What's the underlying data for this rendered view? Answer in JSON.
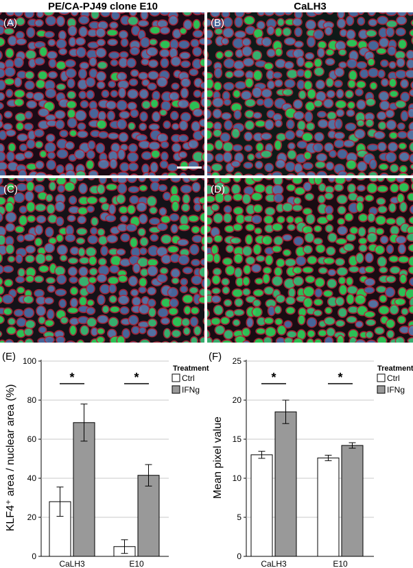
{
  "headers": {
    "left": "PE/CA-PJ49 clone E10",
    "right": "CaLH3"
  },
  "panels": {
    "A": {
      "label": "(A)",
      "tint": "#c43050"
    },
    "B": {
      "label": "(B)",
      "tint": "#2fa080"
    },
    "C": {
      "label": "(C)",
      "tint": "#30a870"
    },
    "D": {
      "label": "(D)",
      "tint": "#18c050"
    }
  },
  "colors": {
    "ctrl": "#ffffff",
    "ifng": "#999999",
    "grid": "#c8c8c8",
    "axis": "#000000"
  },
  "chart_data": [
    {
      "type": "bar",
      "panel_label": "(E)",
      "ylabel": "KLF4⁺ area / nuclear area (%)",
      "xlabel": "",
      "ylim": [
        0,
        100
      ],
      "yticks": [
        "0",
        "20",
        "40",
        "60",
        "80",
        "100"
      ],
      "grid": true,
      "legend_title": "Treatment",
      "legend_position": "top-right",
      "categories": [
        "CaLH3",
        "E10"
      ],
      "series": [
        {
          "name": "Ctrl",
          "values": [
            28,
            5
          ],
          "errors": [
            7.5,
            3.5
          ]
        },
        {
          "name": "IFNg",
          "values": [
            68.5,
            41.5
          ],
          "errors": [
            9.5,
            5.5
          ]
        }
      ],
      "significance": [
        "*",
        "*"
      ]
    },
    {
      "type": "bar",
      "panel_label": "(F)",
      "ylabel": "Mean pixel value",
      "xlabel": "",
      "ylim": [
        0,
        25
      ],
      "yticks": [
        "0",
        "5",
        "10",
        "15",
        "20",
        "25"
      ],
      "grid": true,
      "legend_title": "Treatment",
      "legend_position": "top-right",
      "categories": [
        "CaLH3",
        "E10"
      ],
      "series": [
        {
          "name": "Ctrl",
          "values": [
            13,
            12.6
          ],
          "errors": [
            0.45,
            0.35
          ]
        },
        {
          "name": "IFNg",
          "values": [
            18.5,
            14.2
          ],
          "errors": [
            1.5,
            0.35
          ]
        }
      ],
      "significance": [
        "*",
        "*"
      ]
    }
  ]
}
